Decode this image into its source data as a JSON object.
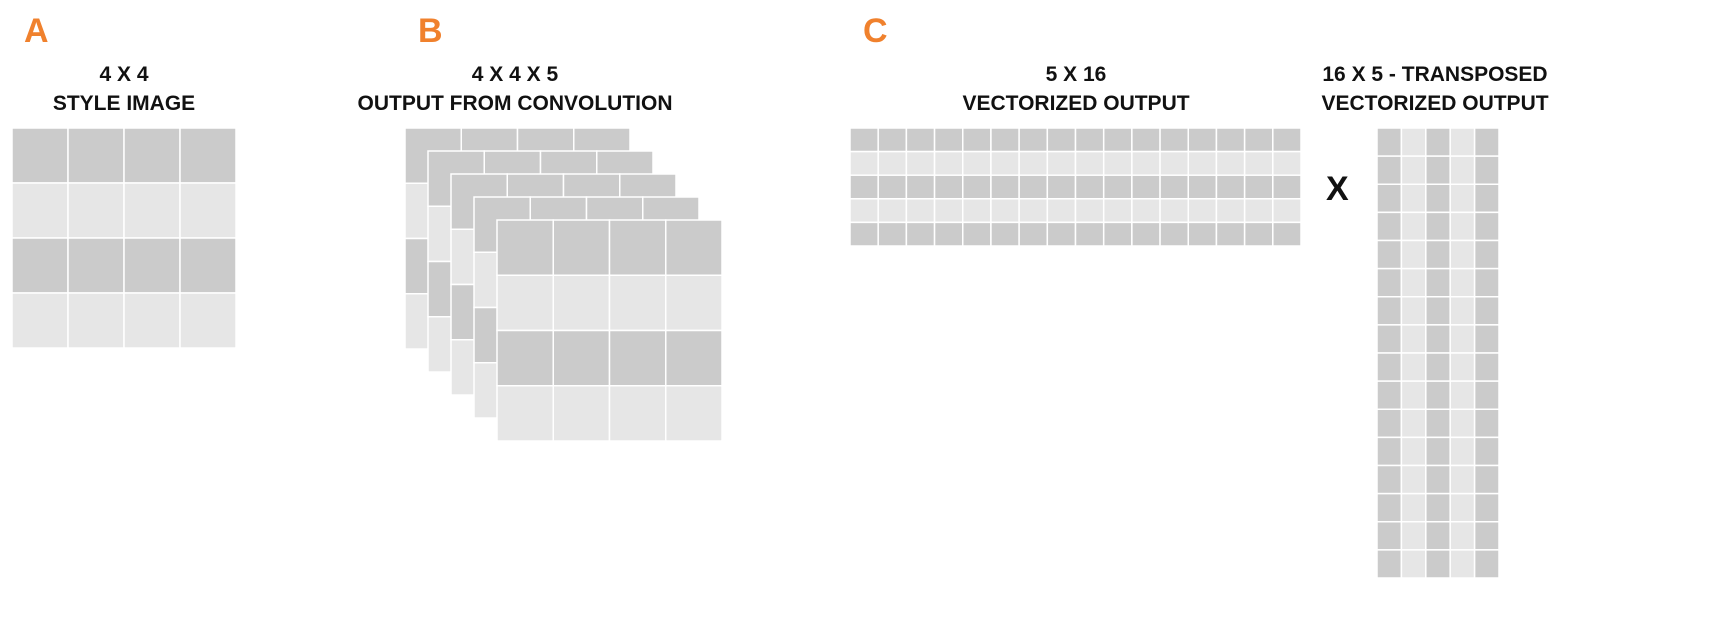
{
  "colors": {
    "accent": "#f0812d",
    "cell_dark": "#cbcbcb",
    "cell_light": "#e6e6e6",
    "cell_border": "#ffffff"
  },
  "panels": {
    "a": {
      "letter": "A",
      "title_line1": "4 X 4",
      "title_line2": "STYLE IMAGE",
      "rows": 4,
      "cols": 4
    },
    "b": {
      "letter": "B",
      "title_line1": "4 X 4 X 5",
      "title_line2": "OUTPUT FROM CONVOLUTION",
      "rows": 4,
      "cols": 4,
      "layers": 5
    },
    "c": {
      "letter": "C",
      "left": {
        "title_line1": "5 X 16",
        "title_line2": "VECTORIZED OUTPUT",
        "rows": 5,
        "cols": 16
      },
      "operator": "X",
      "right": {
        "title_line1": "16 X 5 - TRANSPOSED",
        "title_line2": "VECTORIZED OUTPUT",
        "rows": 16,
        "cols": 5
      }
    }
  }
}
